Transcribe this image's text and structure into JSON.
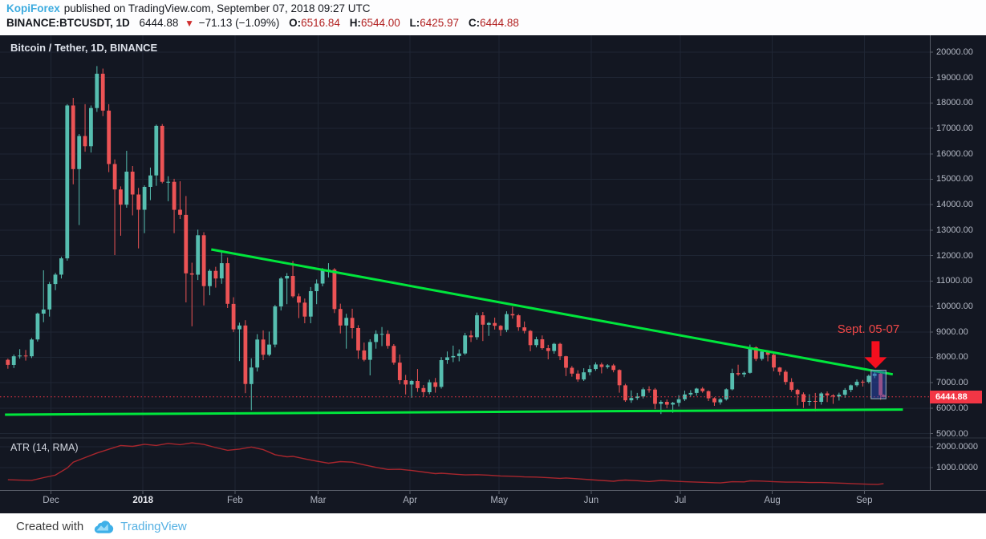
{
  "header": {
    "author": "KopiForex",
    "published_text": "published on TradingView.com, September 07, 2018 09:27 UTC",
    "symbol": "BINANCE:BTCUSDT, 1D",
    "last": "6444.88",
    "direction_icon": "▼",
    "change": "−71.13 (−1.09%)",
    "ohlc": {
      "o_label": "O:",
      "o": "6516.84",
      "h_label": "H:",
      "h": "6544.00",
      "l_label": "L:",
      "l": "6425.97",
      "c_label": "C:",
      "c": "6444.88"
    }
  },
  "chart": {
    "colors": {
      "background": "#131722",
      "grid": "#1f2634",
      "axis_text": "#b2b7c3",
      "axis_line": "#565b66",
      "up": "#56beb0",
      "down": "#ec5355",
      "trend": "#00e63c",
      "price_line": "#f23645",
      "atr": "#a8262d",
      "arrow": "#f50f1e",
      "annotation": "#f04848",
      "box_fill": "rgba(45,80,200,0.45)",
      "box_border": "#9fb4c4",
      "author_blue": "#3cabdf",
      "brand_blue": "#54b0e3",
      "ohlc_value_red": "#b22222"
    }
  },
  "footer": {
    "created_with": "Created with",
    "brand": "TradingView"
  },
  "chart_data": {
    "type": "candlestick",
    "title": "Bitcoin / Tether, 1D, BINANCE",
    "legend_position": "top-left",
    "grid": true,
    "price_axis": {
      "ticks": [
        20000,
        19000,
        18000,
        17000,
        16000,
        15000,
        14000,
        13000,
        12000,
        11000,
        10000,
        9000,
        8000,
        7000,
        6000,
        5000
      ],
      "decimals": 2,
      "range_top": 20660,
      "range_bottom": 4830
    },
    "time_axis": {
      "ticks": [
        {
          "label": "Dec",
          "day": 15
        },
        {
          "label": "2018",
          "day": 46,
          "bold": true
        },
        {
          "label": "Feb",
          "day": 77
        },
        {
          "label": "Mar",
          "day": 105
        },
        {
          "label": "Apr",
          "day": 136
        },
        {
          "label": "May",
          "day": 166
        },
        {
          "label": "Jun",
          "day": 197
        },
        {
          "label": "Jul",
          "day": 227
        },
        {
          "label": "Aug",
          "day": 258
        },
        {
          "label": "Sep",
          "day": 289
        }
      ]
    },
    "candles": [
      [
        0,
        7900,
        7950,
        7550,
        7700
      ],
      [
        2,
        7700,
        8110,
        7580,
        8040
      ],
      [
        4,
        8040,
        8320,
        7950,
        8070
      ],
      [
        6,
        8070,
        8290,
        7870,
        8040
      ],
      [
        8,
        8040,
        8760,
        7970,
        8700
      ],
      [
        10,
        8700,
        9760,
        8620,
        9720
      ],
      [
        12,
        9720,
        11420,
        9380,
        9880
      ],
      [
        14,
        9880,
        10960,
        9600,
        10880
      ],
      [
        16,
        10880,
        11320,
        10640,
        11250
      ],
      [
        18,
        11250,
        11960,
        11100,
        11890
      ],
      [
        20,
        11890,
        17950,
        11800,
        17900
      ],
      [
        22,
        17900,
        18200,
        14800,
        15400
      ],
      [
        24,
        15400,
        16780,
        13200,
        16700
      ],
      [
        26,
        16700,
        17950,
        16080,
        16300
      ],
      [
        28,
        16300,
        17900,
        16050,
        17800
      ],
      [
        30,
        17800,
        19450,
        17650,
        19150
      ],
      [
        32,
        19150,
        19350,
        17480,
        17700
      ],
      [
        34,
        17700,
        17950,
        15280,
        15600
      ],
      [
        36,
        15600,
        15780,
        12020,
        14600
      ],
      [
        38,
        14600,
        14720,
        12780,
        14000
      ],
      [
        40,
        14000,
        16120,
        13880,
        15300
      ],
      [
        42,
        15300,
        15520,
        13580,
        14400
      ],
      [
        44,
        14400,
        14660,
        12280,
        13800
      ],
      [
        46,
        13800,
        14760,
        12880,
        14700
      ],
      [
        48,
        14700,
        15460,
        14180,
        15150
      ],
      [
        50,
        15150,
        17150,
        14740,
        17100
      ],
      [
        52,
        17100,
        17170,
        14840,
        14900
      ],
      [
        54,
        14900,
        15120,
        14140,
        14900
      ],
      [
        56,
        14900,
        15020,
        12880,
        13800
      ],
      [
        58,
        13800,
        14920,
        13440,
        13600
      ],
      [
        60,
        13600,
        14340,
        10160,
        11300
      ],
      [
        62,
        11300,
        11720,
        9220,
        11250
      ],
      [
        64,
        11250,
        13020,
        11040,
        12800
      ],
      [
        66,
        12800,
        12920,
        10040,
        10800
      ],
      [
        68,
        10800,
        11460,
        10440,
        11400
      ],
      [
        70,
        11400,
        11560,
        10740,
        11100
      ],
      [
        72,
        11100,
        12160,
        10890,
        11700
      ],
      [
        74,
        11700,
        11920,
        9940,
        10100
      ],
      [
        76,
        10100,
        10360,
        8990,
        9100
      ],
      [
        78,
        9100,
        9360,
        7850,
        9250
      ],
      [
        80,
        9250,
        9460,
        6590,
        6950
      ],
      [
        82,
        6950,
        7960,
        5920,
        7600
      ],
      [
        84,
        7600,
        8910,
        7440,
        8700
      ],
      [
        86,
        8700,
        9060,
        7890,
        8100
      ],
      [
        88,
        8100,
        9010,
        8040,
        8500
      ],
      [
        90,
        8500,
        10060,
        8390,
        10000
      ],
      [
        92,
        10000,
        11160,
        9840,
        11100
      ],
      [
        94,
        11100,
        11310,
        10090,
        11200
      ],
      [
        96,
        11200,
        11780,
        10340,
        10400
      ],
      [
        98,
        10400,
        10510,
        9540,
        10150
      ],
      [
        100,
        10150,
        10310,
        9340,
        9600
      ],
      [
        102,
        9600,
        10760,
        9340,
        10600
      ],
      [
        104,
        10600,
        11060,
        10090,
        10900
      ],
      [
        106,
        10900,
        11510,
        10790,
        11450
      ],
      [
        108,
        11450,
        11700,
        11140,
        11450
      ],
      [
        110,
        11450,
        11510,
        9740,
        9900
      ],
      [
        112,
        9900,
        10110,
        8940,
        9250
      ],
      [
        114,
        9250,
        9710,
        8340,
        9550
      ],
      [
        116,
        9550,
        9910,
        8740,
        9150
      ],
      [
        118,
        9150,
        9260,
        7940,
        8270
      ],
      [
        120,
        8270,
        8580,
        7840,
        7900
      ],
      [
        122,
        7900,
        8710,
        7290,
        8600
      ],
      [
        124,
        8600,
        9060,
        8340,
        8920
      ],
      [
        126,
        8920,
        9190,
        8440,
        8920
      ],
      [
        128,
        8920,
        9060,
        8340,
        8450
      ],
      [
        130,
        8450,
        8520,
        7710,
        7790
      ],
      [
        132,
        7790,
        8110,
        6940,
        7100
      ],
      [
        134,
        7100,
        7310,
        6540,
        6930
      ],
      [
        136,
        6930,
        7110,
        6410,
        7070
      ],
      [
        138,
        7070,
        7540,
        6640,
        6790
      ],
      [
        140,
        6790,
        6910,
        6440,
        6630
      ],
      [
        142,
        6630,
        7120,
        6550,
        7020
      ],
      [
        144,
        7020,
        7190,
        6610,
        6840
      ],
      [
        146,
        6840,
        8010,
        6770,
        7890
      ],
      [
        148,
        7890,
        8230,
        7740,
        8000
      ],
      [
        150,
        8000,
        8460,
        7810,
        8050
      ],
      [
        152,
        8050,
        8310,
        7840,
        8150
      ],
      [
        154,
        8150,
        8960,
        8090,
        8860
      ],
      [
        156,
        8860,
        9050,
        8600,
        8790
      ],
      [
        158,
        8790,
        9760,
        8690,
        9650
      ],
      [
        160,
        9650,
        9780,
        8640,
        9280
      ],
      [
        162,
        9280,
        9390,
        8840,
        9350
      ],
      [
        164,
        9350,
        9560,
        9090,
        9240
      ],
      [
        166,
        9240,
        9270,
        8840,
        9080
      ],
      [
        168,
        9080,
        9810,
        8990,
        9700
      ],
      [
        170,
        9700,
        9990,
        9520,
        9650
      ],
      [
        172,
        9650,
        9700,
        9040,
        9180
      ],
      [
        174,
        9180,
        9410,
        8940,
        9040
      ],
      [
        176,
        9040,
        9070,
        8240,
        8480
      ],
      [
        178,
        8480,
        8810,
        8390,
        8710
      ],
      [
        180,
        8710,
        8860,
        8300,
        8360
      ],
      [
        182,
        8360,
        8490,
        7920,
        8250
      ],
      [
        184,
        8250,
        8570,
        8140,
        8530
      ],
      [
        186,
        8530,
        8570,
        7890,
        8040
      ],
      [
        188,
        8040,
        8060,
        7260,
        7590
      ],
      [
        190,
        7590,
        7660,
        7240,
        7360
      ],
      [
        192,
        7360,
        7490,
        7040,
        7130
      ],
      [
        194,
        7130,
        7570,
        7070,
        7410
      ],
      [
        196,
        7410,
        7690,
        7290,
        7540
      ],
      [
        198,
        7540,
        7800,
        7470,
        7720
      ],
      [
        200,
        7720,
        7790,
        7370,
        7620
      ],
      [
        202,
        7620,
        7730,
        7550,
        7680
      ],
      [
        204,
        7680,
        7740,
        7410,
        7500
      ],
      [
        206,
        7500,
        7530,
        6610,
        6900
      ],
      [
        208,
        6900,
        6960,
        6250,
        6310
      ],
      [
        210,
        6310,
        6700,
        6210,
        6400
      ],
      [
        212,
        6400,
        6600,
        6320,
        6460
      ],
      [
        214,
        6460,
        6810,
        6380,
        6740
      ],
      [
        216,
        6740,
        6860,
        6610,
        6730
      ],
      [
        218,
        6730,
        6790,
        5960,
        6170
      ],
      [
        220,
        6170,
        6310,
        5770,
        6250
      ],
      [
        222,
        6250,
        6340,
        6000,
        6140
      ],
      [
        224,
        6140,
        6250,
        5820,
        6210
      ],
      [
        226,
        6210,
        6510,
        6070,
        6350
      ],
      [
        228,
        6350,
        6690,
        6280,
        6540
      ],
      [
        230,
        6540,
        6710,
        6450,
        6600
      ],
      [
        232,
        6600,
        6800,
        6490,
        6770
      ],
      [
        234,
        6770,
        6830,
        6610,
        6670
      ],
      [
        236,
        6670,
        6700,
        6280,
        6390
      ],
      [
        238,
        6390,
        6430,
        6090,
        6230
      ],
      [
        240,
        6230,
        6400,
        6140,
        6350
      ],
      [
        242,
        6350,
        6780,
        6300,
        6740
      ],
      [
        244,
        6740,
        7550,
        6700,
        7380
      ],
      [
        246,
        7380,
        7710,
        7270,
        7330
      ],
      [
        248,
        7330,
        7440,
        7220,
        7390
      ],
      [
        250,
        7390,
        8500,
        7360,
        8390
      ],
      [
        252,
        8390,
        8430,
        7850,
        7940
      ],
      [
        254,
        7940,
        8290,
        7870,
        8230
      ],
      [
        256,
        8230,
        8280,
        7840,
        8100
      ],
      [
        258,
        8100,
        8140,
        7450,
        7600
      ],
      [
        260,
        7600,
        7620,
        7290,
        7430
      ],
      [
        262,
        7430,
        7500,
        6920,
        7030
      ],
      [
        264,
        7030,
        7180,
        6650,
        6720
      ],
      [
        266,
        6720,
        6760,
        6110,
        6550
      ],
      [
        268,
        6550,
        6620,
        6010,
        6250
      ],
      [
        270,
        6250,
        6550,
        6100,
        6280
      ],
      [
        272,
        6280,
        6600,
        5880,
        6250
      ],
      [
        274,
        6250,
        6630,
        6140,
        6580
      ],
      [
        276,
        6580,
        6660,
        6240,
        6500
      ],
      [
        278,
        6500,
        6550,
        6170,
        6460
      ],
      [
        280,
        6460,
        6610,
        6300,
        6530
      ],
      [
        282,
        6530,
        6790,
        6410,
        6720
      ],
      [
        284,
        6720,
        6930,
        6630,
        6900
      ],
      [
        286,
        6900,
        7130,
        6840,
        7040
      ],
      [
        288,
        7040,
        7110,
        6850,
        7030
      ],
      [
        290,
        7030,
        7320,
        6970,
        7270
      ],
      [
        292,
        7270,
        7420,
        7180,
        7360
      ],
      [
        294,
        7360,
        7400,
        6330,
        6510
      ],
      [
        295,
        6516.84,
        6544.0,
        6425.97,
        6444.88
      ]
    ],
    "atr": {
      "label": "ATR (14, RMA)",
      "ticks": [
        2000,
        1000
      ],
      "decimals": 4,
      "range_top": 2423,
      "range_bottom": -115,
      "points": [
        [
          0,
          420
        ],
        [
          4,
          400
        ],
        [
          8,
          390
        ],
        [
          12,
          520
        ],
        [
          16,
          640
        ],
        [
          20,
          980
        ],
        [
          22,
          1260
        ],
        [
          26,
          1480
        ],
        [
          30,
          1700
        ],
        [
          34,
          1880
        ],
        [
          38,
          2060
        ],
        [
          42,
          2020
        ],
        [
          46,
          2120
        ],
        [
          50,
          2060
        ],
        [
          54,
          2160
        ],
        [
          58,
          2100
        ],
        [
          62,
          2190
        ],
        [
          66,
          2110
        ],
        [
          70,
          1960
        ],
        [
          74,
          1830
        ],
        [
          78,
          1890
        ],
        [
          82,
          1990
        ],
        [
          86,
          1860
        ],
        [
          90,
          1620
        ],
        [
          94,
          1520
        ],
        [
          96,
          1540
        ],
        [
          100,
          1420
        ],
        [
          104,
          1310
        ],
        [
          108,
          1210
        ],
        [
          112,
          1290
        ],
        [
          116,
          1260
        ],
        [
          120,
          1130
        ],
        [
          124,
          1010
        ],
        [
          128,
          910
        ],
        [
          132,
          920
        ],
        [
          136,
          860
        ],
        [
          140,
          790
        ],
        [
          144,
          710
        ],
        [
          146,
          730
        ],
        [
          150,
          690
        ],
        [
          154,
          650
        ],
        [
          158,
          660
        ],
        [
          162,
          640
        ],
        [
          166,
          600
        ],
        [
          170,
          585
        ],
        [
          174,
          555
        ],
        [
          178,
          545
        ],
        [
          182,
          515
        ],
        [
          186,
          485
        ],
        [
          188,
          505
        ],
        [
          192,
          465
        ],
        [
          196,
          425
        ],
        [
          200,
          385
        ],
        [
          204,
          345
        ],
        [
          206,
          385
        ],
        [
          208,
          405
        ],
        [
          212,
          375
        ],
        [
          216,
          335
        ],
        [
          220,
          385
        ],
        [
          224,
          355
        ],
        [
          228,
          325
        ],
        [
          232,
          305
        ],
        [
          236,
          285
        ],
        [
          240,
          265
        ],
        [
          244,
          325
        ],
        [
          248,
          315
        ],
        [
          250,
          365
        ],
        [
          254,
          355
        ],
        [
          258,
          325
        ],
        [
          262,
          305
        ],
        [
          266,
          305
        ],
        [
          270,
          285
        ],
        [
          274,
          285
        ],
        [
          278,
          265
        ],
        [
          282,
          245
        ],
        [
          286,
          225
        ],
        [
          290,
          205
        ],
        [
          293,
          195
        ],
        [
          295,
          235
        ]
      ]
    },
    "price_line": {
      "value": 6444.88,
      "label": "6444.88"
    },
    "trendlines": [
      {
        "name": "descending-resistance",
        "from_day": 69,
        "from_price": 12240,
        "to_day": 298.6,
        "to_price": 7330
      },
      {
        "name": "horizontal-support",
        "from_day": -0.5,
        "from_price": 5745,
        "to_day": 302,
        "to_price": 5945
      }
    ],
    "highlight_box": {
      "from_day": 291.3,
      "to_day": 296.3,
      "price_top": 7490,
      "price_bottom": 6370
    },
    "annotation": {
      "text": "Sept. 05-07",
      "text_day": 290.4,
      "text_price": 9100,
      "arrow_day": 292.8,
      "arrow_tip_price": 7560
    }
  }
}
